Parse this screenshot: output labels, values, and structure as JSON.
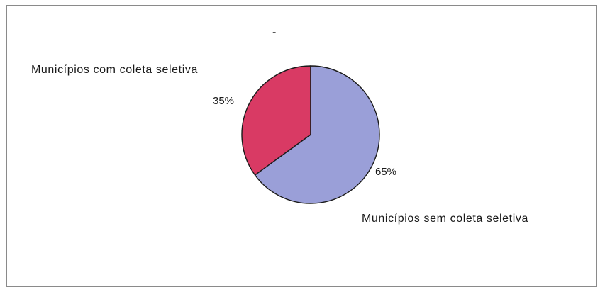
{
  "chart_data": {
    "type": "pie",
    "title": "-",
    "slices": [
      {
        "label": "Municípios com coleta seletiva",
        "value": 35,
        "value_label": "35%",
        "color": "#d93a64"
      },
      {
        "label": "Municípios sem coleta seletiva",
        "value": 65,
        "value_label": "65%",
        "color": "#9a9fd8"
      }
    ],
    "start": "top",
    "direction": "counterclockwise",
    "legend": "none"
  }
}
